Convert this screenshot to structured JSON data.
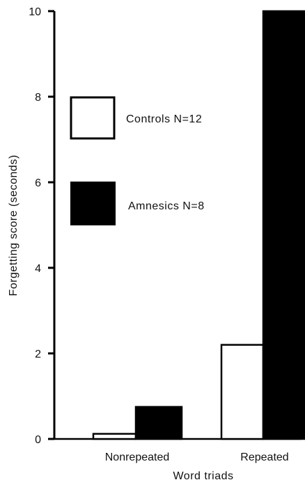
{
  "chart_data": {
    "type": "bar",
    "xlabel": "Word triads",
    "ylabel": "Forgetting score (seconds)",
    "ylim": [
      0,
      10
    ],
    "yticks": [
      "0",
      "2",
      "4",
      "6",
      "8",
      "10"
    ],
    "categories": [
      "Nonrepeated",
      "Repeated"
    ],
    "series": [
      {
        "name": "Controls N=12",
        "values": [
          0.12,
          2.2
        ],
        "fill": "#ffffff",
        "stroke": "#000000"
      },
      {
        "name": "Amnesics N=8",
        "values": [
          0.75,
          10
        ],
        "fill": "#000000",
        "stroke": "#000000"
      }
    ],
    "grid": false,
    "legend_position": "upper-left"
  }
}
